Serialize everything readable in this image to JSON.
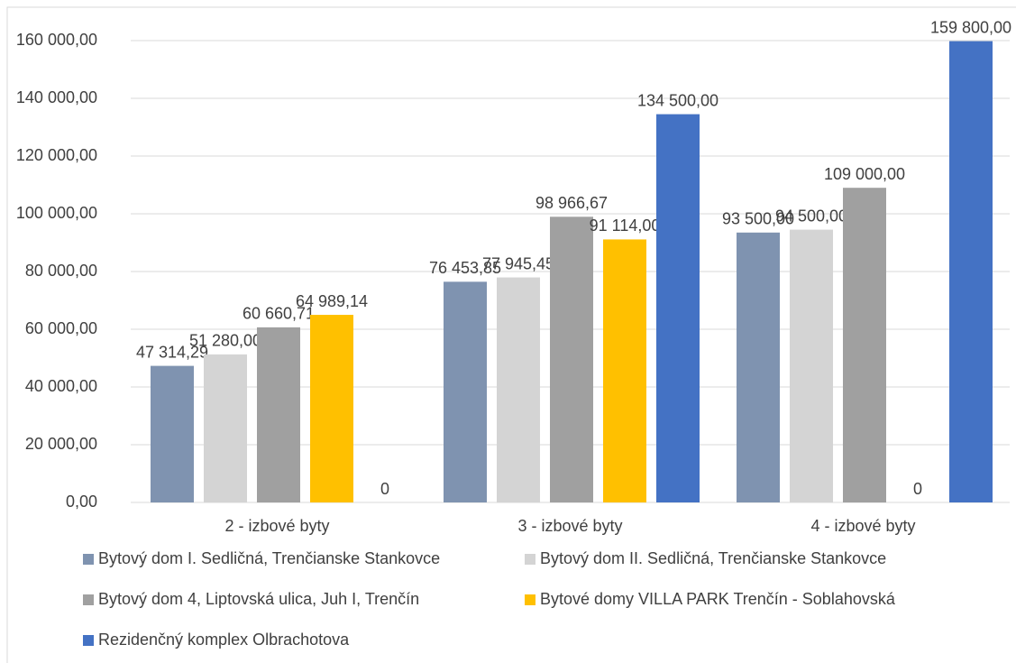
{
  "chart_data": {
    "type": "bar",
    "categories": [
      "2 - izbové byty",
      "3 - izbové byty",
      "4 - izbové byty"
    ],
    "series": [
      {
        "name": "Bytový dom I. Sedličná, Trenčianske Stankovce",
        "color": "#7f93b0",
        "values": [
          47314.29,
          76453.85,
          93500
        ],
        "value_labels": [
          "47 314,29",
          "76 453,85",
          "93 500,00"
        ]
      },
      {
        "name": "Bytový dom II. Sedličná, Trenčianske Stankovce",
        "color": "#d4d4d4",
        "values": [
          51280,
          77945.45,
          94500
        ],
        "value_labels": [
          "51 280,00",
          "77 945,45",
          "94 500,00"
        ]
      },
      {
        "name": "Bytový dom 4, Liptovská ulica, Juh I, Trenčín",
        "color": "#a0a0a0",
        "values": [
          60660.71,
          98966.67,
          109000
        ],
        "value_labels": [
          "60 660,71",
          "98 966,67",
          "109 000,00"
        ]
      },
      {
        "name": "Bytové domy VILLA PARK Trenčín - Soblahovská",
        "color": "#ffc000",
        "values": [
          64989.14,
          91114,
          0
        ],
        "value_labels": [
          "64 989,14",
          "91 114,00",
          "0"
        ]
      },
      {
        "name": "Rezidenčný komplex Olbrachotova",
        "color": "#4472c4",
        "values": [
          0,
          134500,
          159800
        ],
        "value_labels": [
          "0",
          "134 500,00",
          "159 800,00"
        ]
      }
    ],
    "ylim": [
      0,
      160000
    ],
    "yticks": [
      {
        "value": 0,
        "label": "0,00"
      },
      {
        "value": 20000,
        "label": "20 000,00"
      },
      {
        "value": 40000,
        "label": "40 000,00"
      },
      {
        "value": 60000,
        "label": "60 000,00"
      },
      {
        "value": 80000,
        "label": "80 000,00"
      },
      {
        "value": 100000,
        "label": "100 000,00"
      },
      {
        "value": 120000,
        "label": "120 000,00"
      },
      {
        "value": 140000,
        "label": "140 000,00"
      },
      {
        "value": 160000,
        "label": "160 000,00"
      }
    ],
    "grid": true
  }
}
